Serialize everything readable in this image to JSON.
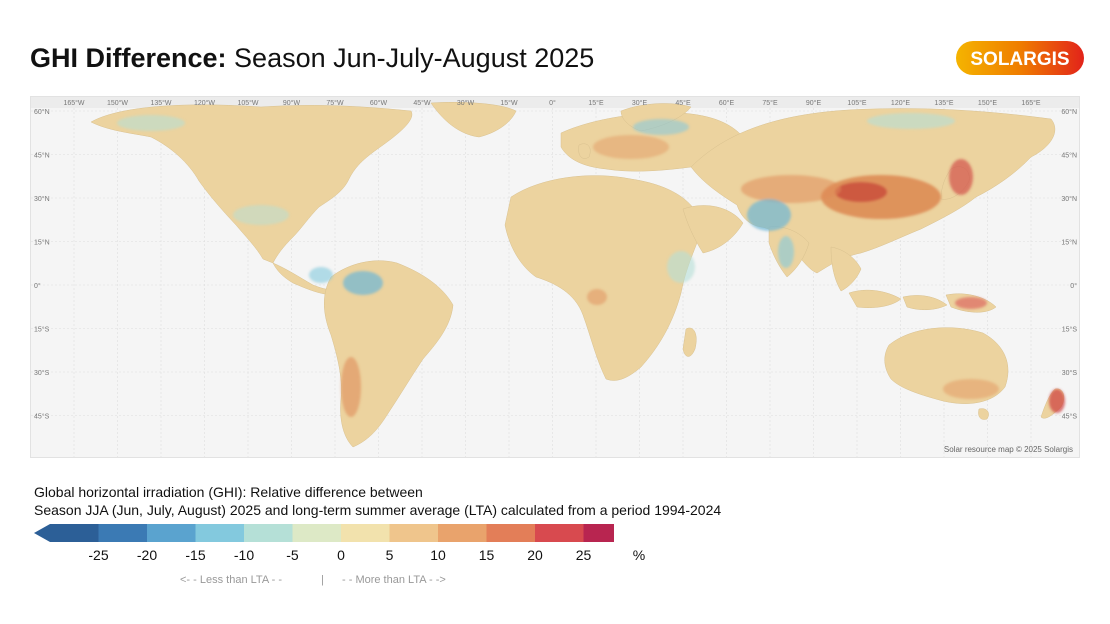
{
  "header": {
    "title_bold": "GHI Difference:",
    "title_rest": " Season Jun-July-August 2025",
    "logo_text": "SOLARGIS"
  },
  "map": {
    "lon_labels": [
      "165°W",
      "150°W",
      "135°W",
      "120°W",
      "105°W",
      "90°W",
      "75°W",
      "60°W",
      "45°W",
      "30°W",
      "15°W",
      "0°",
      "15°E",
      "30°E",
      "45°E",
      "60°E",
      "75°E",
      "90°E",
      "105°E",
      "120°E",
      "135°E",
      "150°E",
      "165°E"
    ],
    "lat_labels": [
      "60°N",
      "45°N",
      "30°N",
      "15°N",
      "0°",
      "15°S",
      "30°S",
      "45°S"
    ],
    "credit": "Solar resource map © 2025 Solargis",
    "background_color": "#f5f5f5"
  },
  "legend": {
    "desc_line1": "Global horizontal irradiation (GHI): Relative difference between",
    "desc_line2": "Season JJA (Jun, July, August) 2025 and long-term summer average (LTA) calculated from a period 1994-2024",
    "ticks": [
      "-25",
      "-20",
      "-15",
      "-10",
      "-5",
      "0",
      "5",
      "10",
      "15",
      "20",
      "25"
    ],
    "unit": "%",
    "colors": [
      "#2c5f97",
      "#3b7ab4",
      "#5aa3cf",
      "#83c9de",
      "#b5e0d7",
      "#dde9c6",
      "#f2e2ad",
      "#efc58c",
      "#e9a36c",
      "#e37e58",
      "#d84a4f",
      "#b82550"
    ],
    "less_label": "<- -   Less than LTA   - -",
    "divider": "|",
    "more_label": "- -   More than LTA   - ->"
  }
}
